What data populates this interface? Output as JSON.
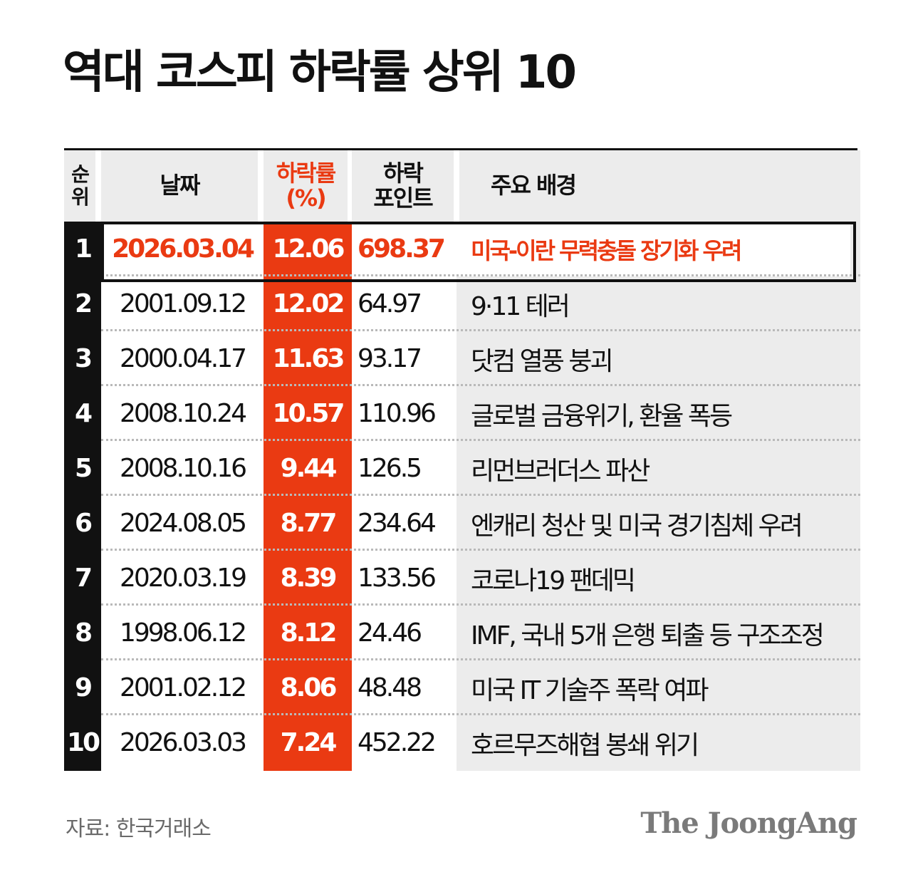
{
  "title": "역대 코스피 하락률 상위 10",
  "table": {
    "headers": {
      "rank": "순위",
      "date": "날짜",
      "rate_line1": "하락률",
      "rate_line2": "(%)",
      "points_line1": "하락",
      "points_line2": "포인트",
      "background": "주요 배경"
    }
  },
  "chart_data": {
    "type": "table",
    "title": "역대 코스피 하락률 상위 10",
    "columns": [
      "순위",
      "날짜",
      "하락률 (%)",
      "하락 포인트",
      "주요 배경"
    ],
    "rows": [
      {
        "rank": "1",
        "date": "2026.03.04",
        "rate": "12.06",
        "points": "698.37",
        "background": "미국-이란 무력충돌 장기화 우려",
        "highlight": true
      },
      {
        "rank": "2",
        "date": "2001.09.12",
        "rate": "12.02",
        "points": "64.97",
        "background": "9·11 테러"
      },
      {
        "rank": "3",
        "date": "2000.04.17",
        "rate": "11.63",
        "points": "93.17",
        "background": "닷컴 열풍 붕괴"
      },
      {
        "rank": "4",
        "date": "2008.10.24",
        "rate": "10.57",
        "points": "110.96",
        "background": "글로벌 금융위기, 환율 폭등"
      },
      {
        "rank": "5",
        "date": "2008.10.16",
        "rate": "9.44",
        "points": "126.5",
        "background": "리먼브러더스 파산"
      },
      {
        "rank": "6",
        "date": "2024.08.05",
        "rate": "8.77",
        "points": "234.64",
        "background": "엔캐리 청산 및 미국 경기침체 우려"
      },
      {
        "rank": "7",
        "date": "2020.03.19",
        "rate": "8.39",
        "points": "133.56",
        "background": "코로나19 팬데믹"
      },
      {
        "rank": "8",
        "date": "1998.06.12",
        "rate": "8.12",
        "points": "24.46",
        "background": "IMF, 국내 5개 은행 퇴출 등 구조조정"
      },
      {
        "rank": "9",
        "date": "2001.02.12",
        "rate": "8.06",
        "points": "48.48",
        "background": "미국 IT 기술주 폭락 여파"
      },
      {
        "rank": "10",
        "date": "2026.03.03",
        "rate": "7.24",
        "points": "452.22",
        "background": "호르무즈해협 봉쇄 위기"
      }
    ]
  },
  "colors": {
    "accent": "#ea3a12",
    "rank_column": "#111111",
    "header_bg": "#ececec",
    "background_column": "#ececec"
  },
  "footer": {
    "source": "자료: 한국거래소",
    "logo": "The JoongAng"
  }
}
